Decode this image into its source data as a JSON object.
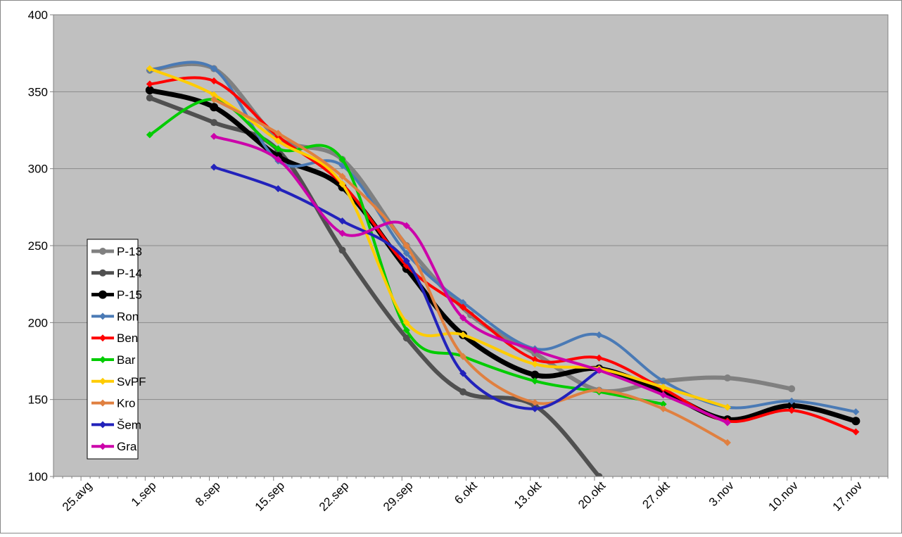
{
  "chart_data": {
    "type": "line",
    "title": "",
    "xlabel": "",
    "ylabel": "",
    "x_ticks": [
      "25.avg",
      "1.sep",
      "8.sep",
      "15.sep",
      "22.sep",
      "29.sep",
      "6.okt",
      "13.okt",
      "20.okt",
      "27.okt",
      "3.nov",
      "10.nov",
      "17.nov"
    ],
    "ylim": [
      100,
      400
    ],
    "yticks": [
      100,
      150,
      200,
      250,
      300,
      350,
      400
    ],
    "grid": true,
    "legend_position": "left",
    "series": [
      {
        "name": "P-13",
        "color": "#808080",
        "width": 6,
        "marker": "circle",
        "points": [
          [
            1,
            364
          ],
          [
            2,
            365
          ],
          [
            3,
            320
          ],
          [
            4,
            306
          ],
          [
            5,
            250
          ],
          [
            6,
            205
          ],
          [
            7,
            180
          ],
          [
            8,
            156
          ],
          [
            9,
            162
          ],
          [
            10,
            164
          ],
          [
            11,
            157
          ]
        ]
      },
      {
        "name": "P-14",
        "color": "#505050",
        "width": 6,
        "marker": "circle",
        "points": [
          [
            1,
            346
          ],
          [
            2,
            330
          ],
          [
            3,
            312
          ],
          [
            4,
            247
          ],
          [
            5,
            190
          ],
          [
            5.88,
            155
          ],
          [
            7,
            146
          ],
          [
            8,
            100
          ]
        ]
      },
      {
        "name": "P-15",
        "color": "#000000",
        "width": 7,
        "marker": "circle",
        "points": [
          [
            1,
            351
          ],
          [
            2,
            340
          ],
          [
            3,
            308
          ],
          [
            4,
            288
          ],
          [
            5,
            235
          ],
          [
            5.88,
            192
          ],
          [
            7,
            166
          ],
          [
            8,
            170
          ],
          [
            9,
            155
          ],
          [
            10,
            137
          ],
          [
            11,
            146
          ],
          [
            12,
            136
          ]
        ]
      },
      {
        "name": "Ron",
        "color": "#4a7ab5",
        "width": 4,
        "marker": "diamond",
        "points": [
          [
            1,
            364
          ],
          [
            2,
            365
          ],
          [
            3,
            305
          ],
          [
            4,
            302
          ],
          [
            5,
            245
          ],
          [
            5.88,
            213
          ],
          [
            7,
            183
          ],
          [
            8,
            192
          ],
          [
            9,
            162
          ],
          [
            10,
            145
          ],
          [
            11,
            149
          ],
          [
            12,
            142
          ]
        ]
      },
      {
        "name": "Ben",
        "color": "#ff0000",
        "width": 4,
        "marker": "diamond",
        "points": [
          [
            1,
            355
          ],
          [
            2,
            357
          ],
          [
            3,
            321
          ],
          [
            4,
            290
          ],
          [
            5,
            237
          ],
          [
            5.88,
            210
          ],
          [
            7,
            176
          ],
          [
            8,
            177
          ],
          [
            9,
            157
          ],
          [
            10,
            136
          ],
          [
            11,
            143
          ],
          [
            12,
            129
          ]
        ]
      },
      {
        "name": "Bar",
        "color": "#00cc00",
        "width": 4,
        "marker": "diamond",
        "points": [
          [
            1,
            322
          ],
          [
            2,
            345
          ],
          [
            3,
            313
          ],
          [
            4,
            306
          ],
          [
            5,
            195
          ],
          [
            5.88,
            178
          ],
          [
            7,
            162
          ],
          [
            8,
            155
          ],
          [
            9,
            147
          ]
        ]
      },
      {
        "name": "SvPF",
        "color": "#ffcc00",
        "width": 4,
        "marker": "diamond",
        "points": [
          [
            1,
            365
          ],
          [
            2,
            348
          ],
          [
            3,
            318
          ],
          [
            4,
            290
          ],
          [
            5,
            200
          ],
          [
            5.88,
            192
          ],
          [
            7,
            173
          ],
          [
            8,
            170
          ],
          [
            9,
            158
          ],
          [
            10,
            145
          ]
        ]
      },
      {
        "name": "Kro",
        "color": "#e08040",
        "width": 4,
        "marker": "diamond",
        "points": [
          [
            2,
            345
          ],
          [
            3,
            323
          ],
          [
            4,
            295
          ],
          [
            5,
            250
          ],
          [
            5.88,
            178
          ],
          [
            7,
            148
          ],
          [
            8,
            156
          ],
          [
            9,
            144
          ],
          [
            10,
            122
          ]
        ]
      },
      {
        "name": "Šem",
        "color": "#2222bb",
        "width": 4,
        "marker": "diamond",
        "points": [
          [
            2,
            301
          ],
          [
            3,
            287
          ],
          [
            4,
            266
          ],
          [
            5,
            240
          ],
          [
            5.88,
            167
          ],
          [
            7,
            144
          ],
          [
            8,
            169
          ]
        ]
      },
      {
        "name": "Gra",
        "color": "#cc00aa",
        "width": 4,
        "marker": "diamond",
        "points": [
          [
            2,
            321
          ],
          [
            3,
            306
          ],
          [
            4,
            258
          ],
          [
            5,
            263
          ],
          [
            5.88,
            203
          ],
          [
            7,
            182
          ],
          [
            8,
            169
          ],
          [
            9,
            153
          ],
          [
            10,
            135
          ]
        ]
      }
    ]
  }
}
